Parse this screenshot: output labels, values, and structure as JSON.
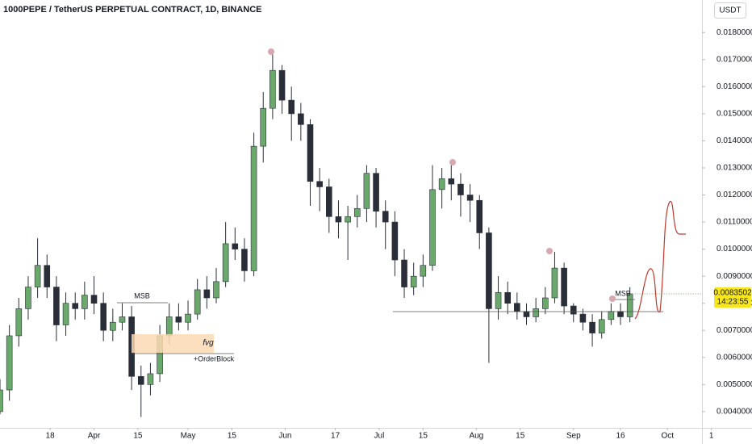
{
  "chart_data": {
    "type": "candlestick",
    "title": "1000PEPE / TetherUS PERPETUAL CONTRACT, 1D, BINANCE",
    "currency": "USDT",
    "countdown": "14:23:55",
    "annotations": [
      "MSB",
      "fvg",
      "+OrderBlock",
      "MSB"
    ],
    "up_color": "#6aa86c",
    "down_color": "#2a2e39",
    "x": [
      2,
      5,
      8,
      11,
      14,
      17,
      20,
      23,
      26,
      29,
      32,
      35,
      38,
      41,
      44,
      47,
      50,
      53,
      56,
      59,
      62,
      65,
      68,
      71,
      74,
      77,
      80,
      83,
      86,
      89,
      92,
      95,
      98,
      101,
      104,
      107,
      110,
      113,
      116,
      119,
      122,
      125,
      128,
      131,
      134,
      137,
      140,
      143,
      146,
      149,
      152,
      155,
      158,
      161,
      164,
      167,
      170,
      173,
      176,
      179,
      182,
      185,
      188,
      191,
      194,
      197,
      200,
      203
    ],
    "open": [
      0.004,
      0.0048,
      0.0068,
      0.0078,
      0.0086,
      0.0094,
      0.0086,
      0.0072,
      0.008,
      0.0078,
      0.0083,
      0.008,
      0.007,
      0.0073,
      0.0075,
      0.0053,
      0.005,
      0.0054,
      0.0068,
      0.0075,
      0.0073,
      0.0076,
      0.0085,
      0.0082,
      0.0088,
      0.0102,
      0.01,
      0.0092,
      0.0138,
      0.0152,
      0.0166,
      0.0155,
      0.015,
      0.0146,
      0.0125,
      0.0123,
      0.0112,
      0.011,
      0.0112,
      0.0115,
      0.0128,
      0.0114,
      0.011,
      0.0096,
      0.0086,
      0.009,
      0.0094,
      0.0122,
      0.0126,
      0.0124,
      0.012,
      0.0118,
      0.0106,
      0.0078,
      0.0084,
      0.008,
      0.0077,
      0.0075,
      0.0078,
      0.0082,
      0.0093,
      0.0079,
      0.0076,
      0.0073,
      0.0069,
      0.0074,
      0.0077,
      0.0075
    ],
    "high": [
      0.0052,
      0.0072,
      0.0082,
      0.009,
      0.0104,
      0.0098,
      0.009,
      0.0084,
      0.0084,
      0.0088,
      0.009,
      0.0084,
      0.0078,
      0.008,
      0.0079,
      0.0057,
      0.0058,
      0.0072,
      0.008,
      0.008,
      0.0081,
      0.0089,
      0.009,
      0.0093,
      0.011,
      0.0108,
      0.0104,
      0.0143,
      0.0158,
      0.0172,
      0.0168,
      0.016,
      0.0154,
      0.0148,
      0.013,
      0.0126,
      0.0118,
      0.0116,
      0.012,
      0.0131,
      0.013,
      0.0118,
      0.0114,
      0.01,
      0.0095,
      0.0098,
      0.0131,
      0.013,
      0.0131,
      0.0128,
      0.0124,
      0.012,
      0.0108,
      0.009,
      0.0088,
      0.0084,
      0.008,
      0.0082,
      0.0086,
      0.0099,
      0.0095,
      0.008,
      0.0078,
      0.0076,
      0.0077,
      0.008,
      0.008,
      0.0086
    ],
    "low": [
      0.0039,
      0.0044,
      0.0064,
      0.0074,
      0.0082,
      0.0082,
      0.0066,
      0.0068,
      0.0074,
      0.0074,
      0.0076,
      0.0066,
      0.0066,
      0.007,
      0.0048,
      0.0038,
      0.0046,
      0.0051,
      0.0065,
      0.007,
      0.007,
      0.0074,
      0.0078,
      0.008,
      0.0086,
      0.0096,
      0.0088,
      0.009,
      0.0132,
      0.0148,
      0.015,
      0.014,
      0.014,
      0.0116,
      0.0114,
      0.0106,
      0.0104,
      0.0096,
      0.0108,
      0.011,
      0.0108,
      0.01,
      0.009,
      0.0082,
      0.0083,
      0.0086,
      0.0092,
      0.0115,
      0.0118,
      0.0112,
      0.011,
      0.01,
      0.0058,
      0.0074,
      0.0076,
      0.0074,
      0.0072,
      0.0073,
      0.0076,
      0.008,
      0.0076,
      0.0073,
      0.007,
      0.0064,
      0.0067,
      0.0072,
      0.0072,
      0.0073
    ],
    "close": [
      0.0048,
      0.0068,
      0.0078,
      0.0086,
      0.0094,
      0.0086,
      0.0072,
      0.008,
      0.0078,
      0.0083,
      0.008,
      0.007,
      0.0073,
      0.0075,
      0.0053,
      0.005,
      0.0054,
      0.0068,
      0.0075,
      0.0073,
      0.0076,
      0.0085,
      0.0082,
      0.0088,
      0.0102,
      0.01,
      0.0092,
      0.0138,
      0.0152,
      0.0166,
      0.0155,
      0.015,
      0.0146,
      0.0125,
      0.0123,
      0.0112,
      0.011,
      0.0112,
      0.0115,
      0.0128,
      0.0114,
      0.011,
      0.0096,
      0.0086,
      0.009,
      0.0094,
      0.0122,
      0.0126,
      0.0124,
      0.012,
      0.0118,
      0.0106,
      0.0078,
      0.0084,
      0.008,
      0.0077,
      0.0075,
      0.0078,
      0.0082,
      0.0093,
      0.0079,
      0.0076,
      0.0073,
      0.0069,
      0.0074,
      0.0077,
      0.0075,
      0.0083502
    ],
    "xlim": [
      2,
      226
    ],
    "ylim": [
      0.0034,
      0.0192
    ],
    "xticks": [
      18,
      {
        "value": 32,
        "label": "Apr"
      },
      {
        "value": 46,
        "label": "15"
      },
      {
        "value": 62,
        "label": "May"
      },
      {
        "value": 76,
        "label": "15"
      },
      {
        "value": 93,
        "label": "Jun"
      },
      {
        "value": 109,
        "label": "17"
      },
      {
        "value": 123,
        "label": "Jul"
      },
      {
        "value": 137,
        "label": "15"
      },
      {
        "value": 154,
        "label": "Aug"
      },
      {
        "value": 168,
        "label": "15"
      },
      {
        "value": 185,
        "label": "Sep"
      },
      {
        "value": 200,
        "label": "16"
      },
      {
        "value": 215,
        "label": "Oct"
      },
      {
        "value": 229,
        "label": "1"
      }
    ],
    "yticks": [
      {
        "value": 0.004,
        "label": "0.0040000"
      },
      {
        "value": 0.005,
        "label": "0.0050000"
      },
      {
        "value": 0.006,
        "label": "0.0060000"
      },
      {
        "value": 0.007,
        "label": "0.0070000"
      },
      {
        "value": 0.008,
        "label": "0.0080000"
      },
      {
        "value": 0.009,
        "label": "0.0090000"
      },
      {
        "value": 0.01,
        "label": "0.0100000"
      },
      {
        "value": 0.011,
        "label": "0.0110000"
      },
      {
        "value": 0.012,
        "label": "0.0120000"
      },
      {
        "value": 0.013,
        "label": "0.0130000"
      },
      {
        "value": 0.014,
        "label": "0.0140000"
      },
      {
        "value": 0.015,
        "label": "0.0150000"
      },
      {
        "value": 0.016,
        "label": "0.0160000"
      },
      {
        "value": 0.017,
        "label": "0.0170000"
      },
      {
        "value": 0.018,
        "label": "0.0180000"
      }
    ]
  }
}
